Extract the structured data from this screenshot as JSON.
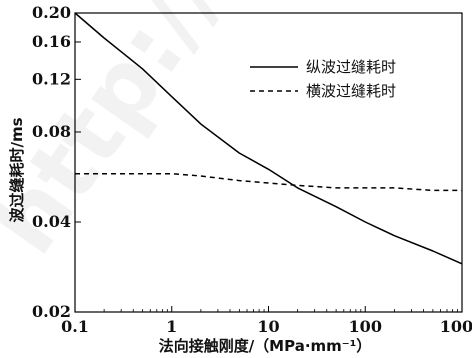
{
  "chart_data": {
    "type": "line",
    "xscale": "log",
    "yscale": "log",
    "xlim": [
      0.1,
      1000
    ],
    "ylim": [
      0.02,
      0.2
    ],
    "xticks": [
      "0.1",
      "1",
      "10",
      "100",
      "1000"
    ],
    "yticks": [
      "0.02",
      "0.04",
      "0.08",
      "0.12",
      "0.16",
      "0.20"
    ],
    "xlabel": "法向接触刚度/（MPa·mm⁻¹）",
    "ylabel": "波过缝耗时/ms",
    "legend_position": "top-right",
    "series": [
      {
        "name": "纵波过缝耗时",
        "style": "solid",
        "color": "#000000",
        "x": [
          0.1,
          0.2,
          0.5,
          1,
          2,
          5,
          10,
          20,
          50,
          100,
          200,
          500,
          1000
        ],
        "y": [
          0.2,
          0.165,
          0.13,
          0.105,
          0.085,
          0.068,
          0.06,
          0.052,
          0.045,
          0.04,
          0.036,
          0.032,
          0.029
        ]
      },
      {
        "name": "横波过缝耗时",
        "style": "dashed",
        "color": "#000000",
        "x": [
          0.1,
          0.2,
          0.5,
          1,
          2,
          5,
          10,
          20,
          50,
          100,
          200,
          500,
          1000
        ],
        "y": [
          0.058,
          0.058,
          0.058,
          0.058,
          0.057,
          0.055,
          0.054,
          0.053,
          0.052,
          0.052,
          0.052,
          0.051,
          0.051
        ]
      }
    ]
  },
  "watermark": {
    "text": "http://"
  }
}
